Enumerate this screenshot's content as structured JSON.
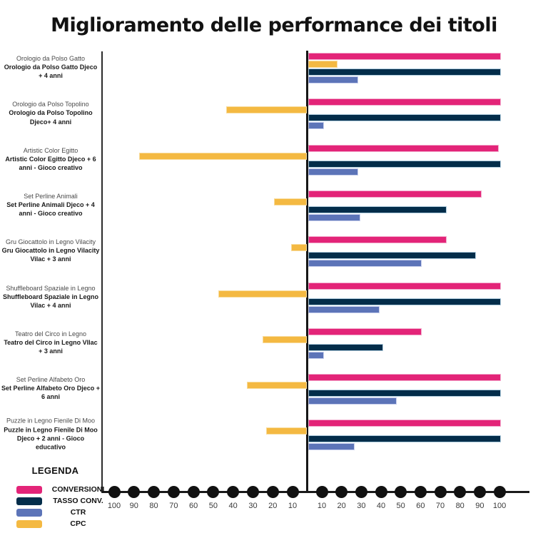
{
  "title": "Miglioramento delle performance dei titoli",
  "legend": {
    "title": "LEGENDA",
    "items": [
      {
        "name": "conversioni",
        "label": "CONVERSIONI",
        "color": "#E32478"
      },
      {
        "name": "tasso_conv",
        "label": "TASSO CONV.",
        "color": "#032D4A"
      },
      {
        "name": "ctr",
        "label": "CTR",
        "color": "#5C74B8"
      },
      {
        "name": "cpc",
        "label": "CPC",
        "color": "#F4B942"
      }
    ]
  },
  "axis": {
    "left_ticks": [
      "100",
      "90",
      "80",
      "70",
      "60",
      "50",
      "40",
      "30",
      "20",
      "10"
    ],
    "right_ticks": [
      "10",
      "20",
      "30",
      "40",
      "50",
      "60",
      "70",
      "80",
      "90",
      "100"
    ]
  },
  "colors": {
    "conversioni": "#E32478",
    "tasso_conv": "#032D4A",
    "ctr": "#5C74B8",
    "cpc": "#F4B942",
    "axis": "#1a1a1a"
  },
  "chart_data": {
    "type": "bar",
    "orientation": "horizontal-diverging",
    "title": "Miglioramento delle performance dei titoli",
    "axis_range": [
      0,
      100
    ],
    "left_side_series": "CPC",
    "right_side_series": [
      "CONVERSIONI",
      "TASSO CONV.",
      "CTR"
    ],
    "bar_order_top_to_bottom": [
      "CONVERSIONI",
      "CPC",
      "TASSO CONV.",
      "CTR"
    ],
    "groups": [
      {
        "label_top": "Orologio da Polso Gatto",
        "label_bold": "Orologio da Polso Gatto Djeco + 4 anni",
        "conversioni": 100,
        "tasso_conv": 100,
        "ctr": 26,
        "cpc": 15,
        "cpc_side": "right"
      },
      {
        "label_top": "Orologio da Polso Topolino",
        "label_bold": "Orologio da Polso Topolino Djeco+ 4 anni",
        "conversioni": 100,
        "tasso_conv": 100,
        "ctr": 8,
        "cpc": 42,
        "cpc_side": "left"
      },
      {
        "label_top": "Artistic Color Egitto",
        "label_bold": "Artistic Color Egitto Djeco + 6 anni - Gioco creativo",
        "conversioni": 99,
        "tasso_conv": 100,
        "ctr": 26,
        "cpc": 87,
        "cpc_side": "left"
      },
      {
        "label_top": "Set Perline Animali",
        "label_bold": "Set Perline Animali Djeco + 4 anni - Gioco creativo",
        "conversioni": 90,
        "tasso_conv": 72,
        "ctr": 27,
        "cpc": 17,
        "cpc_side": "left"
      },
      {
        "label_top": "Gru Giocattolo in Legno Vilacity",
        "label_bold": "Gru Giocattolo in Legno Vilacity Vilac + 3 anni",
        "conversioni": 72,
        "tasso_conv": 87,
        "ctr": 59,
        "cpc": 8,
        "cpc_side": "left"
      },
      {
        "label_top": "Shuffleboard Spaziale in Legno",
        "label_bold": "Shuffleboard Spaziale in Legno Vilac + 4 anni",
        "conversioni": 100,
        "tasso_conv": 100,
        "ctr": 37,
        "cpc": 46,
        "cpc_side": "left"
      },
      {
        "label_top": "Teatro del Circo in Legno",
        "label_bold": "Teatro del Circo in Legno VIlac + 3 anni",
        "conversioni": 59,
        "tasso_conv": 39,
        "ctr": 8,
        "cpc": 23,
        "cpc_side": "left"
      },
      {
        "label_top": "Set Perline Alfabeto Oro",
        "label_bold": "Set Perline Alfabeto Oro Djeco + 6 anni",
        "conversioni": 100,
        "tasso_conv": 100,
        "ctr": 46,
        "cpc": 31,
        "cpc_side": "left"
      },
      {
        "label_top": "Puzzle in Legno Fienile Di Moo",
        "label_bold": "Puzzle in Legno Fienile Di Moo Djeco + 2 anni - Gioco educativo",
        "conversioni": 100,
        "tasso_conv": 100,
        "ctr": 24,
        "cpc": 21,
        "cpc_side": "left"
      }
    ]
  }
}
